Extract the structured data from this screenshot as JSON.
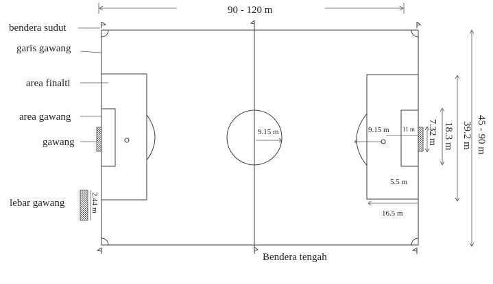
{
  "labels": {
    "corner_flag": "bendera sudut",
    "goal_line": "garis gawang",
    "penalty_area": "area finalti",
    "goal_area": "area gawang",
    "goal": "gawang",
    "goal_height": "lebar gawang",
    "center_flag": "Bendera tengah"
  },
  "dimensions": {
    "field_length": "90 - 120 m",
    "field_width": "45 - 90 m",
    "penalty_area_width": "39.2 m",
    "penalty_arc_width": "18.3 m",
    "goal_width": "7.32 m",
    "goal_height": "2.44 m",
    "center_circle_radius": "9.15 m",
    "penalty_arc_radius": "9.15 m",
    "penalty_mark_distance": "11 m",
    "goal_area_depth": "5.5 m",
    "penalty_area_depth": "16.5 m"
  },
  "colors": {
    "line": "#3a3a3a",
    "text": "#222222",
    "background": "#ffffff"
  }
}
